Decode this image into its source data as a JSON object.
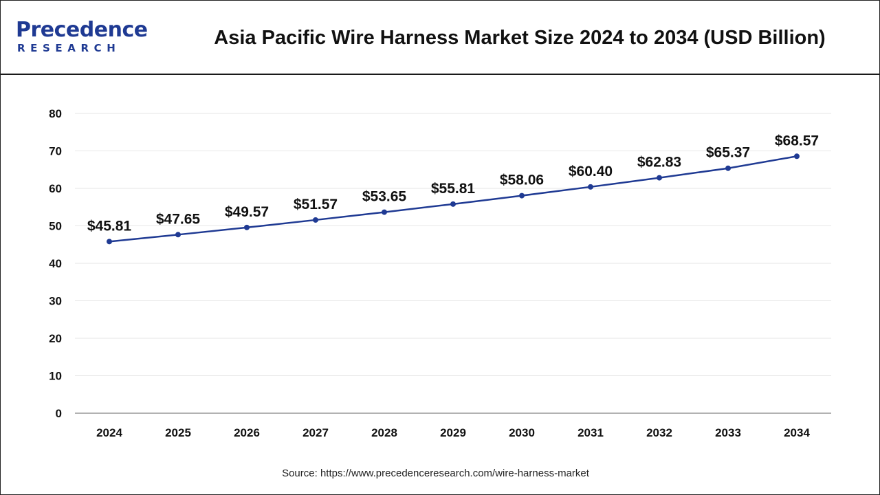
{
  "header": {
    "logo_main": "Precedence",
    "logo_sub": "RESEARCH",
    "title": "Asia Pacific Wire Harness Market Size 2024 to 2034 (USD Billion)"
  },
  "footer": {
    "source": "Source: https://www.precedenceresearch.com/wire-harness-market"
  },
  "colors": {
    "line": "#1f3a93",
    "grid": "#e6e6e6",
    "axis": "#999999",
    "text": "#111111",
    "brand": "#1f3a93"
  },
  "chart_data": {
    "type": "line",
    "title": "Asia Pacific Wire Harness Market Size 2024 to 2034 (USD Billion)",
    "xlabel": "",
    "ylabel": "",
    "x": [
      "2024",
      "2025",
      "2026",
      "2027",
      "2028",
      "2029",
      "2030",
      "2031",
      "2032",
      "2033",
      "2034"
    ],
    "values": [
      45.81,
      47.65,
      49.57,
      51.57,
      53.65,
      55.81,
      58.06,
      60.4,
      62.83,
      65.37,
      68.57
    ],
    "data_labels": [
      "$45.81",
      "$47.65",
      "$49.57",
      "$51.57",
      "$53.65",
      "$55.81",
      "$58.06",
      "$60.40",
      "$62.83",
      "$65.37",
      "$68.57"
    ],
    "yticks": [
      0,
      10,
      20,
      30,
      40,
      50,
      60,
      70,
      80
    ],
    "ylim": [
      0,
      80
    ],
    "grid": true,
    "legend": "none"
  }
}
